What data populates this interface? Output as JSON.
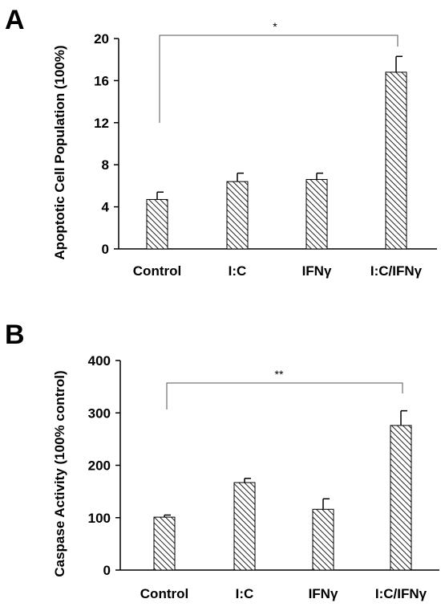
{
  "panels": [
    {
      "letter": "A"
    },
    {
      "letter": "B"
    }
  ],
  "chart_data": [
    {
      "type": "bar",
      "categories": [
        "Control",
        "I:C",
        "IFNγ",
        "I:C/IFNγ"
      ],
      "values": [
        4.7,
        6.4,
        6.6,
        16.8
      ],
      "errors": [
        0.7,
        0.8,
        0.6,
        1.5
      ],
      "ylabel": "Apoptotic Cell Population (100%)",
      "ylim": [
        0,
        20
      ],
      "yticks": [
        "0",
        "4",
        "8",
        "12",
        "16",
        "20"
      ],
      "significance": {
        "from": 0,
        "to": 3,
        "label": "*"
      }
    },
    {
      "type": "bar",
      "categories": [
        "Control",
        "I:C",
        "IFNγ",
        "I:C/IFNγ"
      ],
      "values": [
        101,
        167,
        116,
        276
      ],
      "errors": [
        4,
        8,
        20,
        28
      ],
      "ylabel": "Caspase Activity (100% control)",
      "ylim": [
        0,
        400
      ],
      "yticks": [
        "0",
        "100",
        "200",
        "300",
        "400"
      ],
      "significance": {
        "from": 0,
        "to": 3,
        "label": "**"
      }
    }
  ]
}
